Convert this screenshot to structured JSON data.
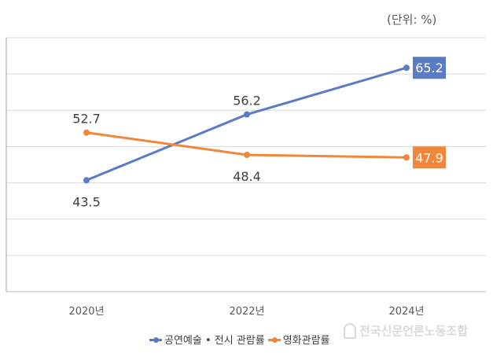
{
  "unit_label": "(단위: %)",
  "watermark_text": "전국신문언론노동조합",
  "chart_data": {
    "type": "line",
    "categories": [
      "2020년",
      "2022년",
      "2024년"
    ],
    "series": [
      {
        "name": "공연예술 • 전시 관람률",
        "values": [
          43.5,
          56.2,
          65.2
        ],
        "color": "#5B7BC4"
      },
      {
        "name": "영화관람률",
        "values": [
          52.7,
          48.4,
          47.9
        ],
        "color": "#F0873A"
      }
    ],
    "ylim": [
      22,
      71
    ],
    "grid": true,
    "legend": "bottom"
  }
}
